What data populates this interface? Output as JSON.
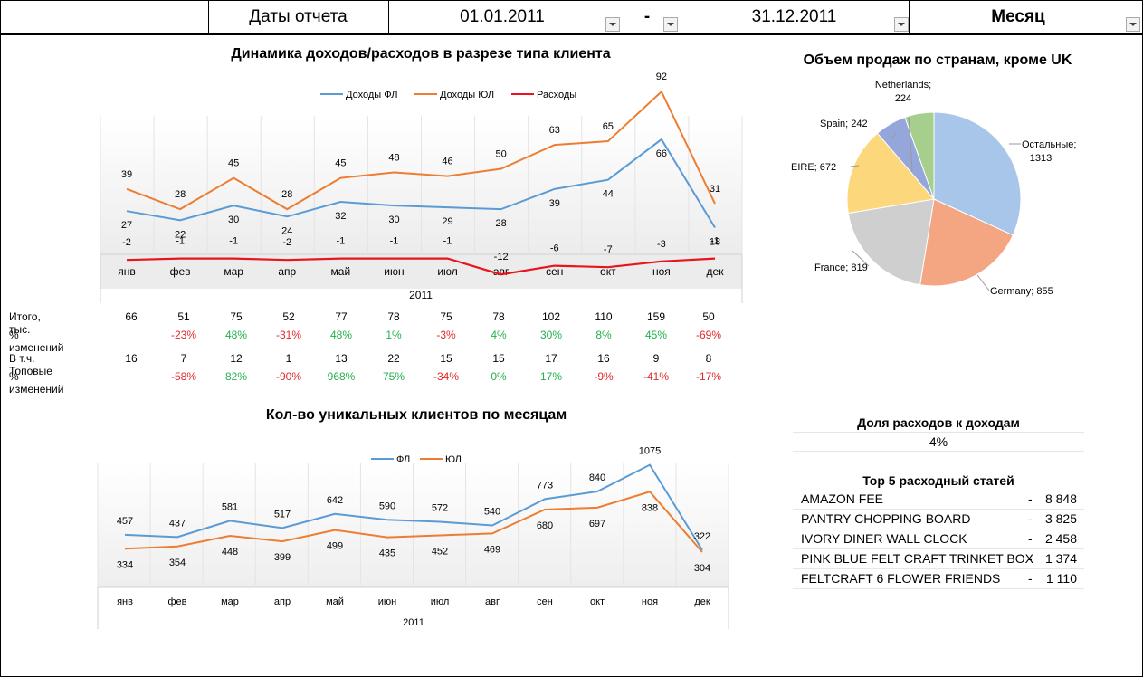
{
  "header": {
    "dates_label": "Даты отчета",
    "date_from": "01.01.2011",
    "dash": "-",
    "date_to": "31.12.2011",
    "period": "Месяц"
  },
  "months": [
    "янв",
    "фев",
    "мар",
    "апр",
    "май",
    "июн",
    "июл",
    "авг",
    "сен",
    "окт",
    "ноя",
    "дек"
  ],
  "income_chart": {
    "title": "Динамика доходов/расходов в разрезе типа клиента",
    "year_label": "2011",
    "legend": [
      "Доходы ФЛ",
      "Доходы ЮЛ",
      "Расходы"
    ]
  },
  "clients_chart": {
    "title": "Кол-во уникальных клиентов по месяцам",
    "year_label": "2011",
    "legend": [
      "ФЛ",
      "ЮЛ"
    ]
  },
  "chart_data": [
    {
      "type": "line",
      "title": "Динамика доходов/расходов в разрезе типа клиента",
      "xlabel": "2011",
      "categories": [
        "янв",
        "фев",
        "мар",
        "апр",
        "май",
        "июн",
        "июл",
        "авг",
        "сен",
        "окт",
        "ноя",
        "дек"
      ],
      "series": [
        {
          "name": "Доходы ФЛ",
          "color": "#5b9bd5",
          "values": [
            27,
            22,
            30,
            24,
            32,
            30,
            29,
            28,
            39,
            44,
            66,
            18
          ]
        },
        {
          "name": "Доходы ЮЛ",
          "color": "#ed7d31",
          "values": [
            39,
            28,
            45,
            28,
            45,
            48,
            46,
            50,
            63,
            65,
            92,
            31
          ]
        },
        {
          "name": "Расходы",
          "color": "#e8141e",
          "values": [
            -2,
            -1,
            -1,
            -2,
            -1,
            -1,
            -1,
            -12,
            -6,
            -7,
            -3,
            -1
          ]
        }
      ]
    },
    {
      "type": "pie",
      "title": "Объем продаж по странам, кроме UK",
      "slices": [
        {
          "label": "Остальные",
          "value": 1313,
          "color": "#a8c6ea"
        },
        {
          "label": "Germany",
          "value": 855,
          "color": "#f4a582"
        },
        {
          "label": "France",
          "value": 819,
          "color": "#cfcfcf"
        },
        {
          "label": "EIRE",
          "value": 672,
          "color": "#fdd77c"
        },
        {
          "label": "Spain",
          "value": 242,
          "color": "#95a6db"
        },
        {
          "label": "Netherlands",
          "value": 224,
          "color": "#a6cf8e"
        }
      ]
    },
    {
      "type": "line",
      "title": "Кол-во уникальных клиентов по месяцам",
      "xlabel": "2011",
      "categories": [
        "янв",
        "фев",
        "мар",
        "апр",
        "май",
        "июн",
        "июл",
        "авг",
        "сен",
        "окт",
        "ноя",
        "дек"
      ],
      "series": [
        {
          "name": "ФЛ",
          "color": "#5b9bd5",
          "values": [
            457,
            437,
            581,
            517,
            642,
            590,
            572,
            540,
            773,
            840,
            1075,
            322
          ]
        },
        {
          "name": "ЮЛ",
          "color": "#ed7d31",
          "values": [
            334,
            354,
            448,
            399,
            499,
            435,
            452,
            469,
            680,
            697,
            838,
            304
          ]
        }
      ]
    }
  ],
  "pie_chart": {
    "title": "Объем продаж по странам, кроме UK",
    "labels": [
      "Остальные;",
      "1313",
      "Germany; 855",
      "France; 819",
      "EIRE; 672",
      "Spain; 242",
      "Netherlands;",
      "224"
    ]
  },
  "summary_table": {
    "rows": [
      {
        "label": "Итого, тыс.",
        "values": [
          "66",
          "51",
          "75",
          "52",
          "77",
          "78",
          "75",
          "78",
          "102",
          "110",
          "159",
          "50"
        ]
      },
      {
        "label": "% изменений",
        "values": [
          "",
          "-23%",
          "48%",
          "-31%",
          "48%",
          "1%",
          "-3%",
          "4%",
          "30%",
          "8%",
          "45%",
          "-69%"
        ]
      },
      {
        "label": "В т.ч. Топовые",
        "values": [
          "16",
          "7",
          "12",
          "1",
          "13",
          "22",
          "15",
          "15",
          "17",
          "16",
          "9",
          "8"
        ]
      },
      {
        "label": "% изменений",
        "values": [
          "",
          "-58%",
          "82%",
          "-90%",
          "968%",
          "75%",
          "-34%",
          "0%",
          "17%",
          "-9%",
          "-41%",
          "-17%"
        ]
      }
    ]
  },
  "expense_share": {
    "title": "Доля расходов к доходам",
    "value": "4%"
  },
  "top5": {
    "title": "Top 5 расходный статей",
    "items": [
      {
        "name": "AMAZON FEE",
        "dash": "-",
        "value": "8 848"
      },
      {
        "name": "PANTRY CHOPPING BOARD",
        "dash": "-",
        "value": "3 825"
      },
      {
        "name": "IVORY DINER WALL CLOCK",
        "dash": "-",
        "value": "2 458"
      },
      {
        "name": "PINK BLUE FELT CRAFT TRINKET BOX",
        "dash": "-",
        "value": "1 374"
      },
      {
        "name": "FELTCRAFT 6 FLOWER FRIENDS",
        "dash": "-",
        "value": "1 110"
      }
    ]
  }
}
